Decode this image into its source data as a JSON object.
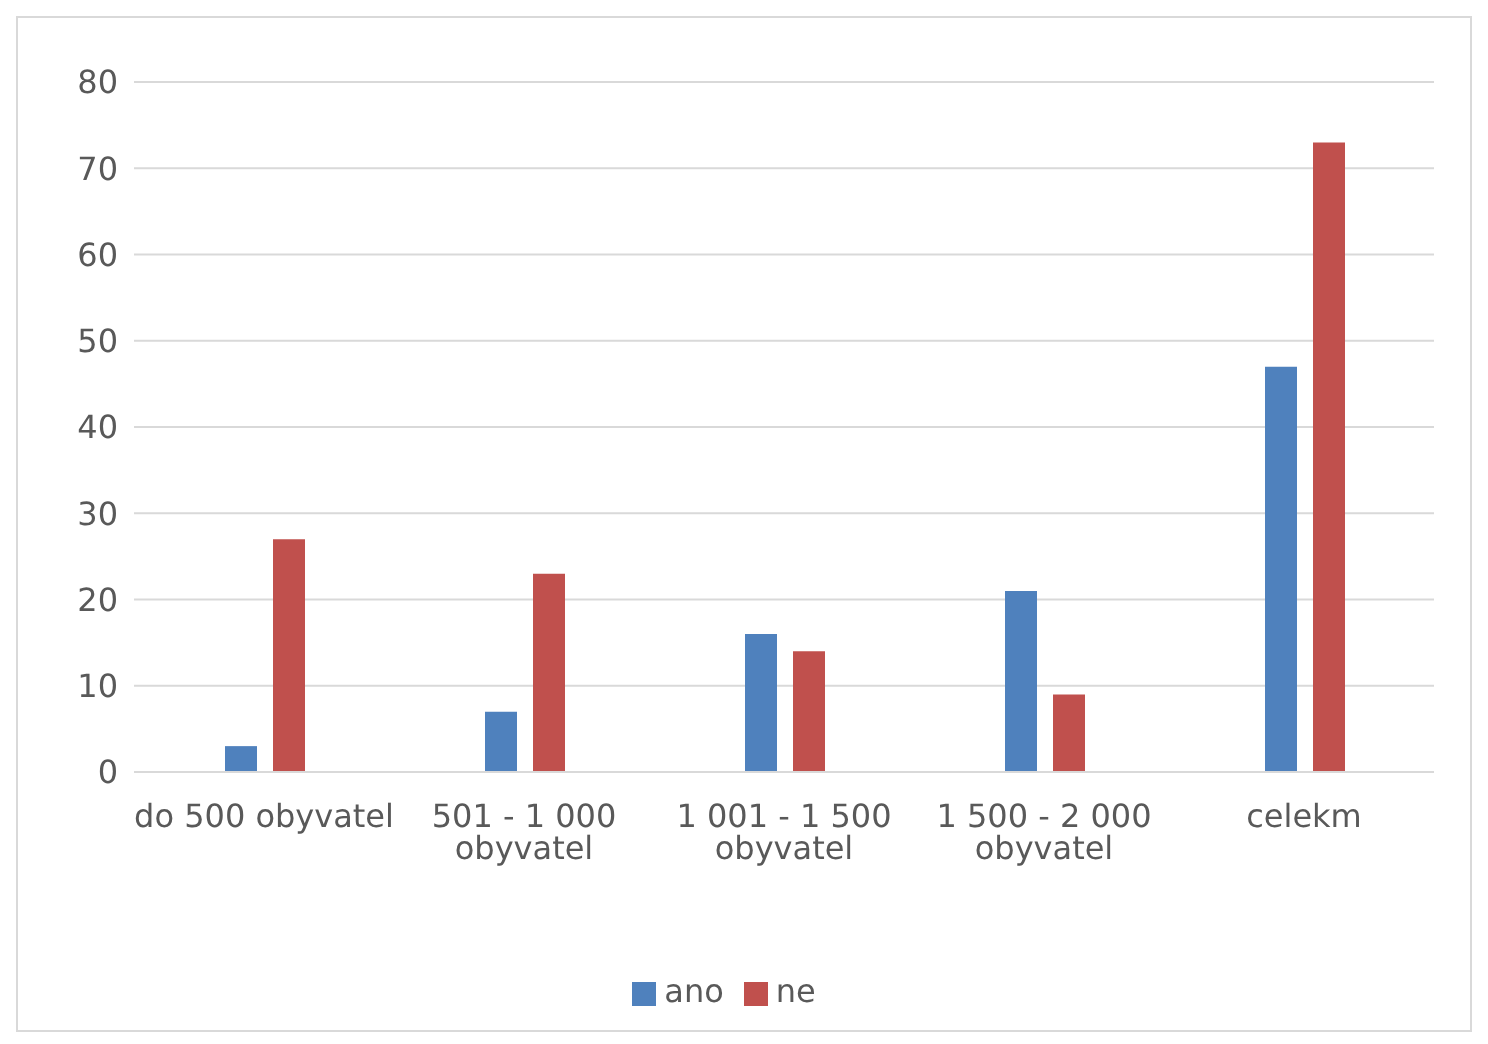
{
  "chart_data": {
    "type": "bar",
    "categories": [
      "do 500 obyvatel",
      "501 - 1 000 obyvatel",
      "1 001 - 1 500 obyvatel",
      "1 500 - 2 000 obyvatel",
      "celekm"
    ],
    "series": [
      {
        "name": "ano",
        "color": "#4f81bd",
        "values": [
          3,
          7,
          16,
          21,
          47
        ]
      },
      {
        "name": "ne",
        "color": "#c0504d",
        "values": [
          27,
          23,
          14,
          9,
          73
        ]
      }
    ],
    "ylim": [
      0,
      80
    ],
    "yticks": [
      0,
      10,
      20,
      30,
      40,
      50,
      60,
      70,
      80
    ],
    "grid": "y",
    "legend": "bottom"
  }
}
